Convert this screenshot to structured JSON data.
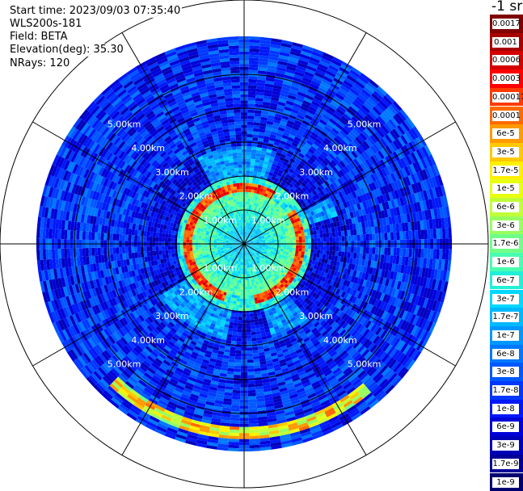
{
  "info": {
    "start_time": "Start time: 2023/09/03 07:35:40",
    "instrument": "WLS200s-181",
    "field": "Field: BETA",
    "elevation": "Elevation(deg): 35.30",
    "nrays": "NRays: 120"
  },
  "chart_data": {
    "type": "heatmap",
    "projection": "polar-ppi",
    "range_rings_km": [
      1,
      2,
      3,
      4,
      5
    ],
    "range_ring_labels": [
      "1.00km",
      "2.00km",
      "3.00km",
      "4.00km",
      "5.00km"
    ],
    "max_range_km": 6.1,
    "spokes_deg": [
      0,
      30,
      60,
      90,
      120,
      150,
      180,
      210,
      240,
      270,
      300,
      330
    ],
    "nrays": 120,
    "colorbar": {
      "unit_label": "-1 sr",
      "scale": "log",
      "levels": [
        "0.0017",
        "0.001",
        "0.0006",
        "0.0003",
        "0.00017",
        "0.0001",
        "6e-5",
        "3e-5",
        "1.7e-5",
        "1e-5",
        "6e-6",
        "3e-6",
        "1.7e-6",
        "1e-6",
        "6e-7",
        "3e-7",
        "1.7e-7",
        "1e-7",
        "6e-8",
        "3e-8",
        "1.7e-8",
        "1e-8",
        "6e-9",
        "3e-9",
        "1.7e-9",
        "1e-9"
      ],
      "colors": [
        "#800000",
        "#a80000",
        "#d40000",
        "#ff0000",
        "#ff3a00",
        "#ff6a00",
        "#ff9a00",
        "#ffc800",
        "#fff000",
        "#e8ff10",
        "#c0ff38",
        "#98ff60",
        "#70ff88",
        "#48ffb0",
        "#20f0d8",
        "#00d8ff",
        "#00b8ff",
        "#0098ff",
        "#0078ff",
        "#0058ff",
        "#0038ff",
        "#0018f8",
        "#0000d8",
        "#0000b8",
        "#000098",
        "#000070"
      ]
    },
    "features": [
      {
        "name": "aerosol-layer-ring",
        "range_km_min": 1.45,
        "range_km_max": 1.85,
        "value": "0.0003"
      },
      {
        "name": "near-field-background",
        "range_km_min": 0,
        "range_km_max": 1.45,
        "value": "1.7e-7"
      },
      {
        "name": "far-field-background",
        "range_km_min": 2.0,
        "range_km_max": 6.1,
        "value": "1e-8"
      },
      {
        "name": "cloud-arc-south",
        "range_km_min": 5.3,
        "range_km_max": 5.8,
        "value": "6e-5"
      }
    ]
  }
}
